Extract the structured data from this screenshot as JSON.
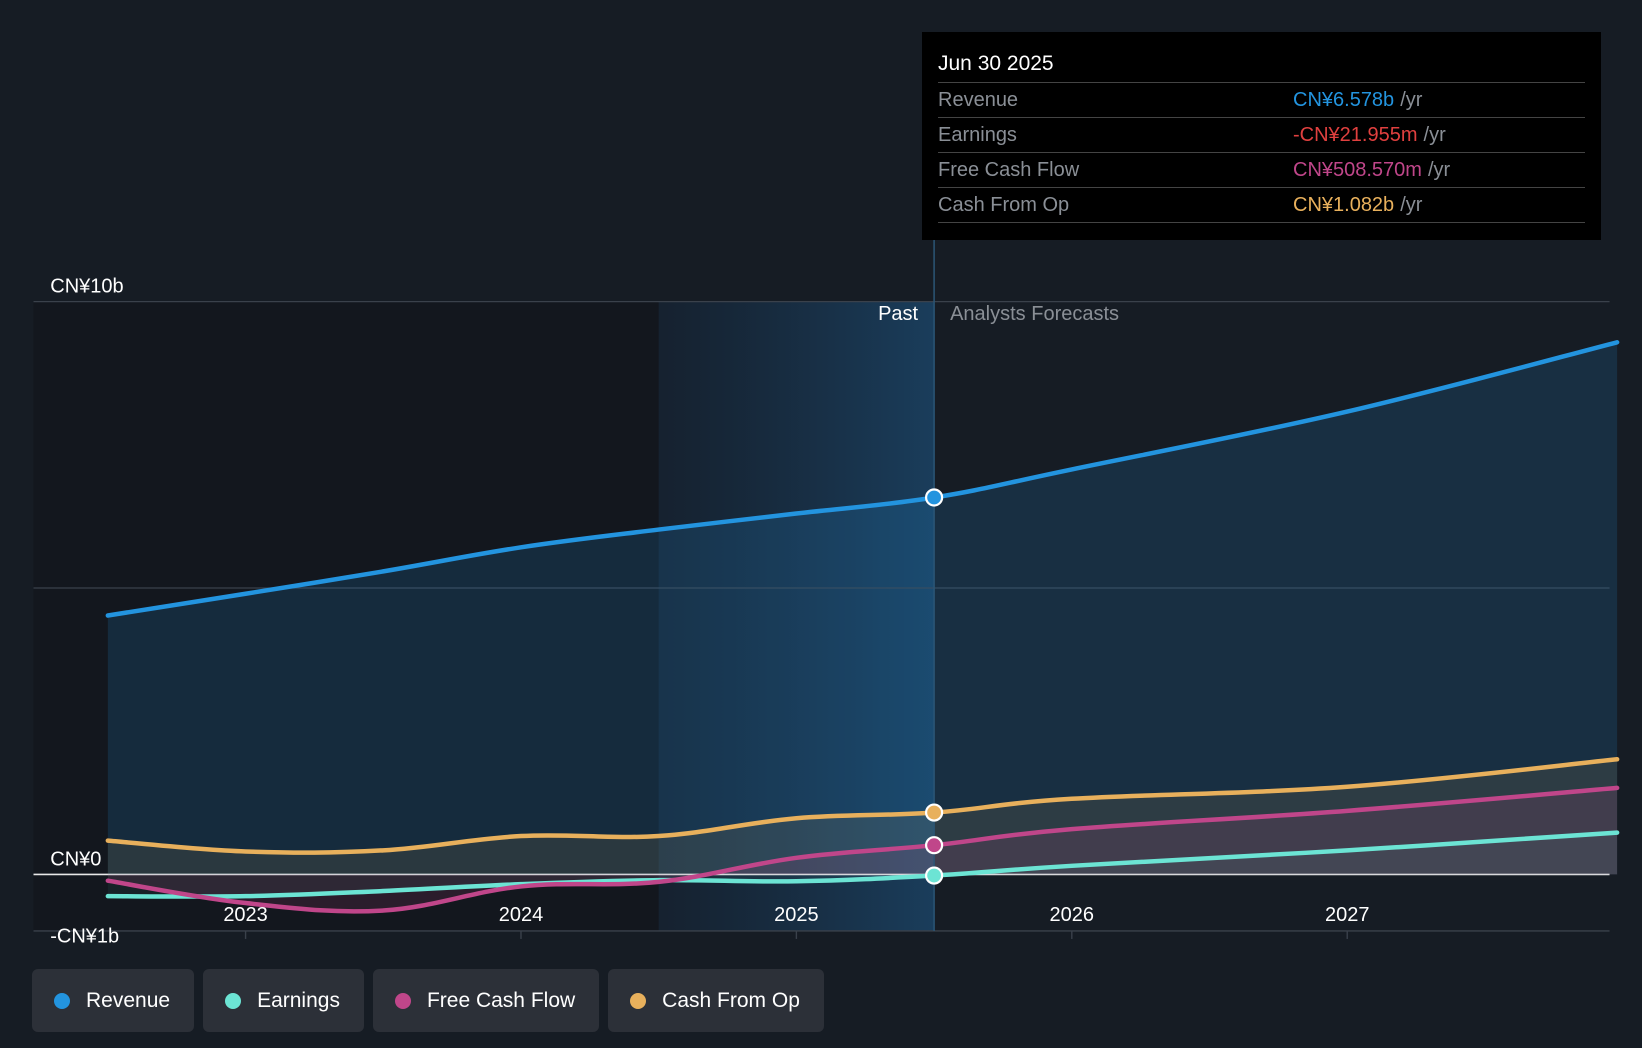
{
  "chart_data": {
    "type": "area",
    "title": "",
    "currency": "CN¥",
    "xlabel": "",
    "ylabel": "",
    "ylim": [
      -1,
      10
    ],
    "xlim": [
      2022.5,
      2027.98
    ],
    "y_ticks": [
      {
        "value": 10,
        "label": "CN¥10b"
      },
      {
        "value": 0,
        "label": "CN¥0"
      },
      {
        "value": -1,
        "label": "-CN¥1b"
      }
    ],
    "gridlines": [
      10,
      5,
      0
    ],
    "x_ticks": [
      {
        "value": 2023,
        "label": "2023"
      },
      {
        "value": 2024,
        "label": "2024"
      },
      {
        "value": 2025,
        "label": "2025"
      },
      {
        "value": 2026,
        "label": "2026"
      },
      {
        "value": 2027,
        "label": "2027"
      }
    ],
    "past_forecast_divider": 2025.5,
    "past_highlight_start": 2024.5,
    "region_labels": {
      "past": "Past",
      "forecast": "Analysts Forecasts"
    },
    "x": [
      2022.5,
      2023.0,
      2023.5,
      2024.0,
      2024.5,
      2025.0,
      2025.5,
      2026.0,
      2027.0,
      2027.98
    ],
    "series": [
      {
        "name": "Revenue",
        "key": "revenue",
        "color": "#2394df",
        "unit": "CN¥b",
        "values": [
          4.52,
          4.9,
          5.29,
          5.71,
          6.02,
          6.3,
          6.58,
          7.07,
          8.08,
          9.29
        ]
      },
      {
        "name": "Earnings",
        "key": "earnings",
        "color": "#6ce4d4",
        "unit": "CN¥b",
        "values": [
          -0.38,
          -0.38,
          -0.29,
          -0.17,
          -0.1,
          -0.12,
          -0.02,
          0.15,
          0.42,
          0.73
        ]
      },
      {
        "name": "Free Cash Flow",
        "key": "fcf",
        "color": "#c0468a",
        "unit": "CN¥b",
        "values": [
          -0.11,
          -0.5,
          -0.63,
          -0.21,
          -0.13,
          0.29,
          0.51,
          0.79,
          1.11,
          1.51
        ]
      },
      {
        "name": "Cash From Op",
        "key": "cfo",
        "color": "#e8b05c",
        "unit": "CN¥b",
        "values": [
          0.59,
          0.4,
          0.42,
          0.67,
          0.67,
          0.98,
          1.08,
          1.32,
          1.53,
          2.01
        ]
      }
    ],
    "legend_position": "bottom-left"
  },
  "tooltip": {
    "date": "Jun 30 2025",
    "unit_suffix": "/yr",
    "rows": [
      {
        "label": "Revenue",
        "value": "CN¥6.578b",
        "color": "#2394df"
      },
      {
        "label": "Earnings",
        "value": "-CN¥21.955m",
        "color": "#e0403f"
      },
      {
        "label": "Free Cash Flow",
        "value": "CN¥508.570m",
        "color": "#c0468a"
      },
      {
        "label": "Cash From Op",
        "value": "CN¥1.082b",
        "color": "#e8b05c"
      }
    ]
  },
  "legend": [
    {
      "label": "Revenue",
      "color": "#2394df"
    },
    {
      "label": "Earnings",
      "color": "#6ce4d4"
    },
    {
      "label": "Free Cash Flow",
      "color": "#c0468a"
    },
    {
      "label": "Cash From Op",
      "color": "#e8b05c"
    }
  ]
}
